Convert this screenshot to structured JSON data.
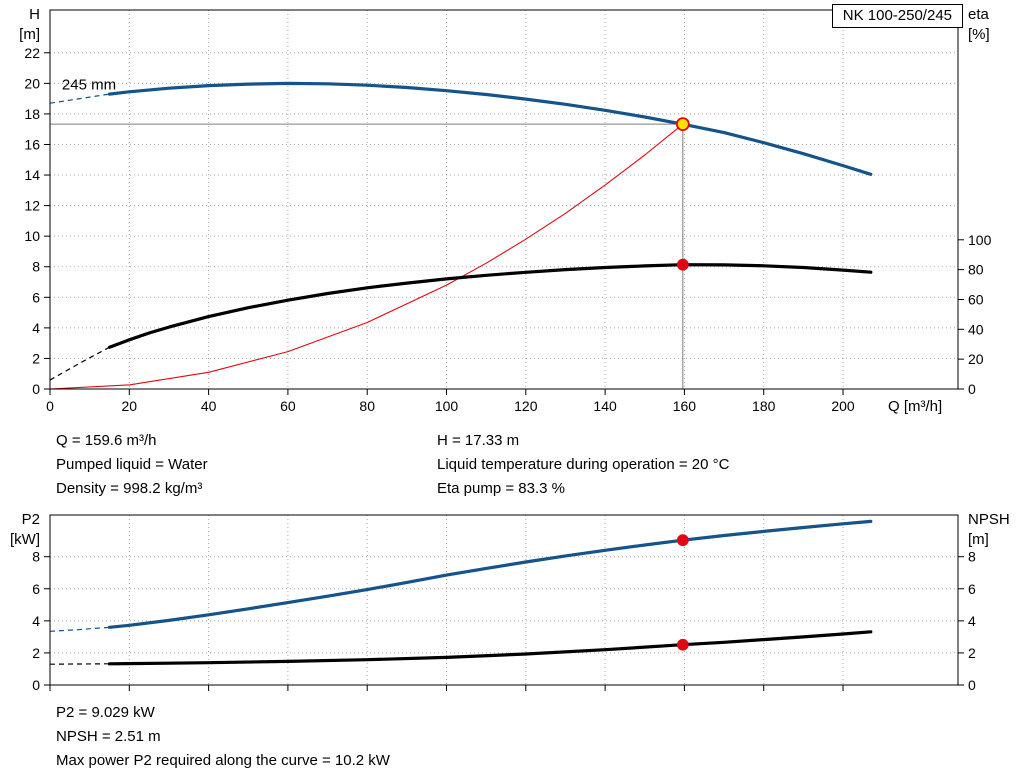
{
  "pump_name": "NK 100-250/245",
  "colors": {
    "curve_blue": "#15538b",
    "curve_black": "#000000",
    "curve_red": "#e30613",
    "duty_yellow": "#ffe000",
    "ref_gray": "#7d7d7d",
    "grid": "#a8a8a8"
  },
  "info_top": {
    "left": [
      "Q = 159.6 m³/h",
      "Pumped liquid = Water",
      "Density = 998.2 kg/m³"
    ],
    "right": [
      "H = 17.33 m",
      "Liquid temperature during operation = 20 °C",
      "Eta pump = 83.3 %"
    ]
  },
  "info_bottom": [
    "P2 = 9.029 kW",
    "NPSH = 2.51 m",
    "Max power P2 required along the curve = 10.2 kW"
  ],
  "chart_data": [
    {
      "id": "head-eta-chart",
      "type": "line",
      "title": "NK 100-250/245",
      "x_axis": {
        "label": "Q [m³/h]",
        "min": 0,
        "max": 229,
        "ticks": [
          0,
          20,
          40,
          60,
          80,
          100,
          120,
          140,
          160,
          180,
          200
        ],
        "show_tick_labels": true
      },
      "y_left": {
        "label": [
          "H",
          "[m]"
        ],
        "min": 0,
        "max": 24.8,
        "ticks": [
          0,
          2,
          4,
          6,
          8,
          10,
          12,
          14,
          16,
          18,
          20,
          22
        ]
      },
      "y_right": {
        "label": [
          "eta",
          "[%]"
        ],
        "min": 0,
        "max": 254,
        "ticks": [
          0,
          20,
          40,
          60,
          80,
          100
        ]
      },
      "grid": true,
      "series": [
        {
          "name": "system-curve",
          "axis": "left",
          "color": "#e30613",
          "width": 1.1,
          "points": [
            [
              0,
              0
            ],
            [
              20,
              0.27
            ],
            [
              40,
              1.09
            ],
            [
              60,
              2.45
            ],
            [
              80,
              4.35
            ],
            [
              100,
              6.8
            ],
            [
              110,
              8.23
            ],
            [
              120,
              9.8
            ],
            [
              130,
              11.5
            ],
            [
              140,
              13.34
            ],
            [
              150,
              15.31
            ],
            [
              159.6,
              17.33
            ]
          ]
        },
        {
          "name": "eta-curve",
          "axis": "right",
          "color": "#000000",
          "width": 3.2,
          "dash_until_x": 15,
          "points": [
            [
              0,
              6
            ],
            [
              8,
              18
            ],
            [
              15,
              28
            ],
            [
              20,
              33
            ],
            [
              25,
              37.5
            ],
            [
              30,
              41.5
            ],
            [
              40,
              48.5
            ],
            [
              50,
              54.5
            ],
            [
              60,
              59.5
            ],
            [
              70,
              64
            ],
            [
              80,
              67.8
            ],
            [
              90,
              71
            ],
            [
              100,
              73.8
            ],
            [
              110,
              76.2
            ],
            [
              120,
              78.2
            ],
            [
              130,
              80
            ],
            [
              140,
              81.4
            ],
            [
              150,
              82.5
            ],
            [
              159.6,
              83.3
            ],
            [
              170,
              83.2
            ],
            [
              180,
              82.6
            ],
            [
              190,
              81.4
            ],
            [
              200,
              79.7
            ],
            [
              207,
              78.3
            ]
          ]
        },
        {
          "name": "head-curve",
          "axis": "left",
          "color": "#15538b",
          "width": 3.2,
          "dash_until_x": 15,
          "points": [
            [
              0,
              18.7
            ],
            [
              5,
              18.9
            ],
            [
              10,
              19.1
            ],
            [
              15,
              19.3
            ],
            [
              20,
              19.45
            ],
            [
              30,
              19.68
            ],
            [
              40,
              19.85
            ],
            [
              50,
              19.95
            ],
            [
              60,
              20.0
            ],
            [
              70,
              19.97
            ],
            [
              80,
              19.88
            ],
            [
              90,
              19.73
            ],
            [
              100,
              19.52
            ],
            [
              110,
              19.27
            ],
            [
              120,
              18.97
            ],
            [
              130,
              18.63
            ],
            [
              140,
              18.24
            ],
            [
              150,
              17.8
            ],
            [
              159.6,
              17.33
            ],
            [
              170,
              16.78
            ],
            [
              180,
              16.12
            ],
            [
              190,
              15.4
            ],
            [
              200,
              14.62
            ],
            [
              207,
              14.05
            ]
          ]
        }
      ],
      "ref_lines": [
        {
          "name": "duty-head-line",
          "type": "h",
          "axis": "left",
          "value": 17.33,
          "from_x": 0,
          "to_x": 159.6
        },
        {
          "name": "duty-flow-line",
          "type": "v",
          "axis": "left",
          "x": 159.6,
          "from": 0,
          "to": 17.33
        }
      ],
      "markers": [
        {
          "name": "duty-point-head",
          "axis": "left",
          "x": 159.6,
          "y": 17.33,
          "r": 6,
          "fill": "#ffe000",
          "stroke": "#e30613"
        },
        {
          "name": "duty-point-eta",
          "axis": "right",
          "x": 159.6,
          "y": 83.3,
          "r": 5,
          "fill": "#e30613",
          "stroke": "#e30613"
        }
      ],
      "annotations": [
        {
          "name": "impeller-diameter-label",
          "text": "245 mm",
          "axis": "left",
          "x": 3,
          "y": 19.6
        }
      ]
    },
    {
      "id": "p2-npsh-chart",
      "type": "line",
      "x_axis": {
        "label": "",
        "min": 0,
        "max": 229,
        "ticks": [
          0,
          20,
          40,
          60,
          80,
          100,
          120,
          140,
          160,
          180,
          200
        ],
        "show_tick_labels": false
      },
      "y_left": {
        "label": [
          "P2",
          "[kW]"
        ],
        "min": 0,
        "max": 10.6,
        "ticks": [
          0,
          2,
          4,
          6,
          8
        ]
      },
      "y_right": {
        "label": [
          "NPSH",
          "[m]"
        ],
        "min": 0,
        "max": 10.6,
        "ticks": [
          0,
          2,
          4,
          6,
          8
        ]
      },
      "grid": true,
      "series": [
        {
          "name": "p2-curve",
          "axis": "left",
          "color": "#15538b",
          "width": 3.2,
          "dash_until_x": 15,
          "points": [
            [
              0,
              3.35
            ],
            [
              7,
              3.45
            ],
            [
              15,
              3.6
            ],
            [
              20,
              3.72
            ],
            [
              30,
              4.03
            ],
            [
              40,
              4.38
            ],
            [
              50,
              4.75
            ],
            [
              60,
              5.14
            ],
            [
              70,
              5.54
            ],
            [
              80,
              5.95
            ],
            [
              90,
              6.4
            ],
            [
              100,
              6.85
            ],
            [
              110,
              7.27
            ],
            [
              120,
              7.67
            ],
            [
              130,
              8.05
            ],
            [
              140,
              8.4
            ],
            [
              150,
              8.73
            ],
            [
              159.6,
              9.029
            ],
            [
              170,
              9.32
            ],
            [
              180,
              9.58
            ],
            [
              190,
              9.82
            ],
            [
              200,
              10.05
            ],
            [
              207,
              10.2
            ]
          ]
        },
        {
          "name": "npsh-curve",
          "axis": "right",
          "color": "#000000",
          "width": 3.2,
          "dash_until_x": 15,
          "points": [
            [
              0,
              1.3
            ],
            [
              7,
              1.31
            ],
            [
              15,
              1.32
            ],
            [
              30,
              1.36
            ],
            [
              40,
              1.39
            ],
            [
              60,
              1.47
            ],
            [
              80,
              1.58
            ],
            [
              100,
              1.72
            ],
            [
              120,
              1.93
            ],
            [
              140,
              2.2
            ],
            [
              159.6,
              2.51
            ],
            [
              170,
              2.66
            ],
            [
              180,
              2.83
            ],
            [
              190,
              3.0
            ],
            [
              200,
              3.18
            ],
            [
              207,
              3.32
            ]
          ]
        }
      ],
      "ref_lines": [],
      "markers": [
        {
          "name": "duty-point-p2",
          "axis": "left",
          "x": 159.6,
          "y": 9.029,
          "r": 5,
          "fill": "#e30613",
          "stroke": "#e30613"
        },
        {
          "name": "duty-point-npsh",
          "axis": "right",
          "x": 159.6,
          "y": 2.51,
          "r": 5,
          "fill": "#e30613",
          "stroke": "#e30613"
        }
      ],
      "annotations": []
    }
  ]
}
